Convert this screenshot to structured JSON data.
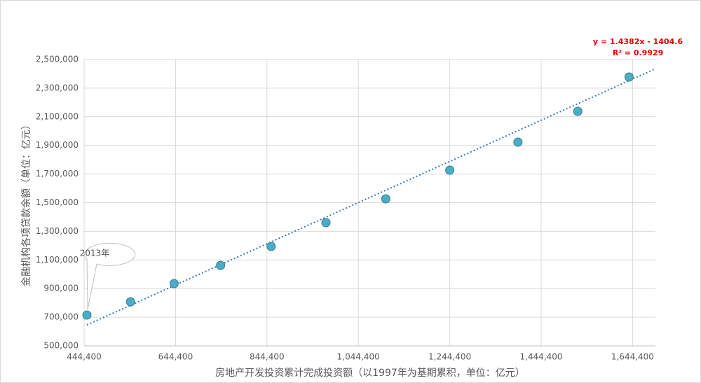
{
  "chart_data": {
    "type": "scatter",
    "x_label": "房地产开发投资累计完成投资额（以1997年为基期累积，单位：亿元）",
    "y_label": "金融机构各项贷款余额（单位：亿元）",
    "annotation": "2013年",
    "series": [
      {
        "color": "#4bacc6",
        "x": [
          450550,
          545900,
          641300,
          742900,
          853600,
          973600,
          1104400,
          1244400,
          1393650,
          1524400,
          1636700
        ],
        "values": [
          715000,
          808000,
          935200,
          1062300,
          1194400,
          1360600,
          1526900,
          1727400,
          1923000,
          2138150,
          2377800
        ]
      }
    ],
    "trendline": {
      "slope": 1.4382,
      "intercept": -1404.6,
      "color": "#3a78b8",
      "equation": "y = 1.4382x - 1404.6",
      "r2": "R² = 0.9929"
    },
    "xlim": [
      444400,
      1694400
    ],
    "xticks": [
      {
        "value": 444400,
        "label": "444,400"
      },
      {
        "value": 644400,
        "label": "644,400"
      },
      {
        "value": 844400,
        "label": "844,400"
      },
      {
        "value": 1044400,
        "label": "1,044,400"
      },
      {
        "value": 1244400,
        "label": "1,244,400"
      },
      {
        "value": 1444400,
        "label": "1,444,400"
      },
      {
        "value": 1644400,
        "label": "1,644,400"
      }
    ],
    "ylim": [
      500000,
      2500000
    ],
    "yticks": [
      {
        "value": 500000,
        "label": "500,000"
      },
      {
        "value": 700000,
        "label": "700,000"
      },
      {
        "value": 900000,
        "label": "900,000"
      },
      {
        "value": 1100000,
        "label": "1,100,000"
      },
      {
        "value": 1300000,
        "label": "1,300,000"
      },
      {
        "value": 1500000,
        "label": "1,500,000"
      },
      {
        "value": 1700000,
        "label": "1,700,000"
      },
      {
        "value": 1900000,
        "label": "1,900,000"
      },
      {
        "value": 2100000,
        "label": "2,100,000"
      },
      {
        "value": 2300000,
        "label": "2,300,000"
      },
      {
        "value": 2500000,
        "label": "2,500,000"
      }
    ],
    "grid": true
  }
}
